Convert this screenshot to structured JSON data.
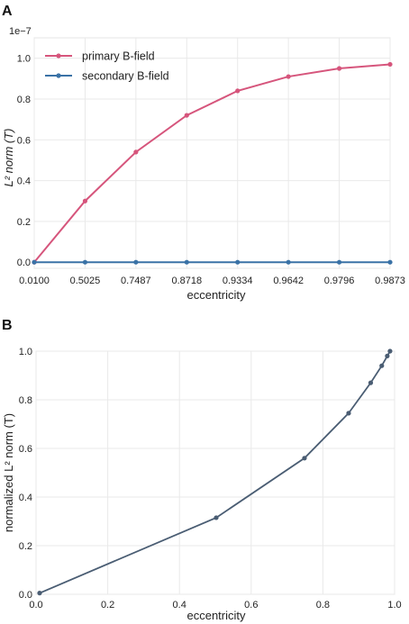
{
  "chart_data": [
    {
      "panel_label": "A",
      "type": "line",
      "scale_note": "1e−7",
      "xlabel": "eccentricity",
      "ylabel": "L² norm (T)",
      "categories": [
        "0.0100",
        "0.5025",
        "0.7487",
        "0.8718",
        "0.9334",
        "0.9642",
        "0.9796",
        "0.9873"
      ],
      "ylim": [
        -0.03,
        1.1
      ],
      "yticks": [
        "0.0",
        "0.2",
        "0.4",
        "0.6",
        "0.8",
        "1.0"
      ],
      "grid": true,
      "legend_position": "top-left",
      "series": [
        {
          "name": "primary B-field",
          "color": "#d6557c",
          "values": [
            0.0,
            0.3,
            0.54,
            0.72,
            0.84,
            0.91,
            0.95,
            0.97
          ]
        },
        {
          "name": "secondary B-field",
          "color": "#3a72a6",
          "values": [
            0.0,
            0.0,
            0.0,
            0.0,
            0.0,
            0.0,
            0.0,
            0.0
          ]
        }
      ]
    },
    {
      "panel_label": "B",
      "type": "line",
      "xlabel": "eccentricity",
      "ylabel": "normalized L² norm (T)",
      "xlim": [
        0.0,
        1.0
      ],
      "ylim": [
        0.0,
        1.0
      ],
      "xticks": [
        "0.0",
        "0.2",
        "0.4",
        "0.6",
        "0.8",
        "1.0"
      ],
      "yticks": [
        "0.0",
        "0.2",
        "0.4",
        "0.6",
        "0.8",
        "1.0"
      ],
      "grid": true,
      "series": [
        {
          "color": "#4a5d73",
          "x": [
            0.01,
            0.5025,
            0.7487,
            0.8718,
            0.9334,
            0.9642,
            0.9796,
            0.9873
          ],
          "y": [
            0.005,
            0.315,
            0.56,
            0.745,
            0.87,
            0.94,
            0.98,
            1.0
          ]
        }
      ]
    }
  ]
}
